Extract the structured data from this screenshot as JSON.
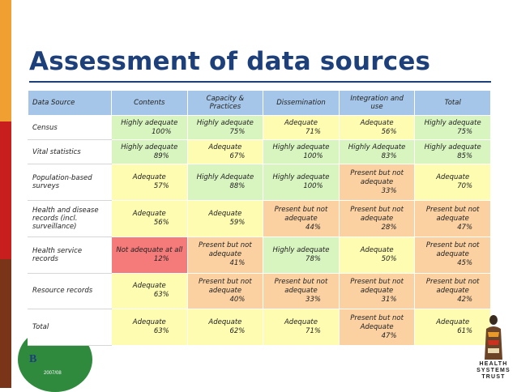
{
  "title": "Assessment of data sources",
  "columns": [
    "Data Source",
    "Contents",
    "Capacity & Practices",
    "Dissemination",
    "Integration and use",
    "Total"
  ],
  "colors": {
    "highly_adequate": "#d8f5c0",
    "adequate": "#fefcb0",
    "present_not_adequate": "#fbd1a2",
    "not_adequate": "#f57a7a",
    "header": "#a5c6e8",
    "title": "#1d3f7a"
  },
  "rows": [
    {
      "source": "Census",
      "cells": [
        {
          "rating": "Highly adequate",
          "pct": "100%",
          "level": "ha"
        },
        {
          "rating": "Highly adequate",
          "pct": "75%",
          "level": "ha"
        },
        {
          "rating": "Adequate",
          "pct": "71%",
          "level": "a"
        },
        {
          "rating": "Adequate",
          "pct": "56%",
          "level": "a"
        },
        {
          "rating": "Highly adequate",
          "pct": "75%",
          "level": "ha"
        }
      ]
    },
    {
      "source": "Vital statistics",
      "cells": [
        {
          "rating": "Highly adequate",
          "pct": "89%",
          "level": "ha"
        },
        {
          "rating": "Adequate",
          "pct": "67%",
          "level": "a"
        },
        {
          "rating": "Highly adequate",
          "pct": "100%",
          "level": "ha"
        },
        {
          "rating": "Highly Adequate",
          "pct": "83%",
          "level": "ha"
        },
        {
          "rating": "Highly adequate",
          "pct": "85%",
          "level": "ha"
        }
      ]
    },
    {
      "source": "Population-based surveys",
      "cells": [
        {
          "rating": "Adequate",
          "pct": "57%",
          "level": "a"
        },
        {
          "rating": "Highly Adequate",
          "pct": "88%",
          "level": "ha"
        },
        {
          "rating": "Highly adequate",
          "pct": "100%",
          "level": "ha"
        },
        {
          "rating": "Present but not adequate",
          "pct": "33%",
          "level": "p"
        },
        {
          "rating": "Adequate",
          "pct": "70%",
          "level": "a"
        }
      ]
    },
    {
      "source": "Health and disease records (incl. surveillance)",
      "cells": [
        {
          "rating": "Adequate",
          "pct": "56%",
          "level": "a"
        },
        {
          "rating": "Adequate",
          "pct": "59%",
          "level": "a"
        },
        {
          "rating": "Present but not adequate",
          "pct": "44%",
          "level": "p"
        },
        {
          "rating": "Present but not adequate",
          "pct": "28%",
          "level": "p"
        },
        {
          "rating": "Present but not adequate",
          "pct": "47%",
          "level": "p"
        }
      ]
    },
    {
      "source": "Health service records",
      "cells": [
        {
          "rating": "Not adequate at all",
          "pct": "12%",
          "level": "n"
        },
        {
          "rating": "Present but not adequate",
          "pct": "41%",
          "level": "p"
        },
        {
          "rating": "Highly adequate",
          "pct": "78%",
          "level": "ha"
        },
        {
          "rating": "Adequate",
          "pct": "50%",
          "level": "a"
        },
        {
          "rating": "Present but not adequate",
          "pct": "45%",
          "level": "p"
        }
      ]
    },
    {
      "source": "Resource records",
      "cells": [
        {
          "rating": "Adequate",
          "pct": "63%",
          "level": "a"
        },
        {
          "rating": "Present but not adequate",
          "pct": "40%",
          "level": "p"
        },
        {
          "rating": "Present but not adequate",
          "pct": "33%",
          "level": "p"
        },
        {
          "rating": "Present but not adequate",
          "pct": "31%",
          "level": "p"
        },
        {
          "rating": "Present but not adequate",
          "pct": "42%",
          "level": "p"
        }
      ]
    },
    {
      "source": "Total",
      "cells": [
        {
          "rating": "Adequate",
          "pct": "63%",
          "level": "a"
        },
        {
          "rating": "Adequate",
          "pct": "62%",
          "level": "a"
        },
        {
          "rating": "Adequate",
          "pct": "71%",
          "level": "a"
        },
        {
          "rating": "Present but not Adequate",
          "pct": "47%",
          "level": "p"
        },
        {
          "rating": "Adequate",
          "pct": "61%",
          "level": "a"
        }
      ]
    }
  ],
  "logo": {
    "lines": [
      "HEALTH",
      "SYSTEMS",
      "TRUST"
    ],
    "icon": "figure-logo-icon"
  },
  "emblem": {
    "letter": "B",
    "caption": "2007/08",
    "icon": "publication-emblem-icon"
  }
}
